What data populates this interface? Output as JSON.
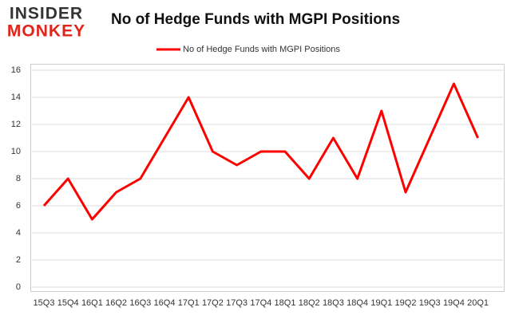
{
  "logo": {
    "line1": "INSIDER",
    "line2": "MONKEY"
  },
  "chart_data": {
    "type": "line",
    "title": "No of Hedge Funds with MGPI Positions",
    "categories": [
      "15Q3",
      "15Q4",
      "16Q1",
      "16Q2",
      "16Q3",
      "16Q4",
      "17Q1",
      "17Q2",
      "17Q3",
      "17Q4",
      "18Q1",
      "18Q2",
      "18Q3",
      "18Q4",
      "19Q1",
      "19Q2",
      "19Q3",
      "19Q4",
      "20Q1"
    ],
    "series": [
      {
        "name": "No of Hedge Funds with MGPI Positions",
        "color": "#ff0000",
        "values": [
          6,
          8,
          5,
          7,
          8,
          11,
          14,
          10,
          9,
          10,
          10,
          8,
          11,
          8,
          13,
          7,
          11,
          15,
          11
        ]
      }
    ],
    "ylim": [
      0,
      16
    ],
    "yticks": [
      0,
      2,
      4,
      6,
      8,
      10,
      12,
      14,
      16
    ],
    "grid": true,
    "legend": "top"
  }
}
